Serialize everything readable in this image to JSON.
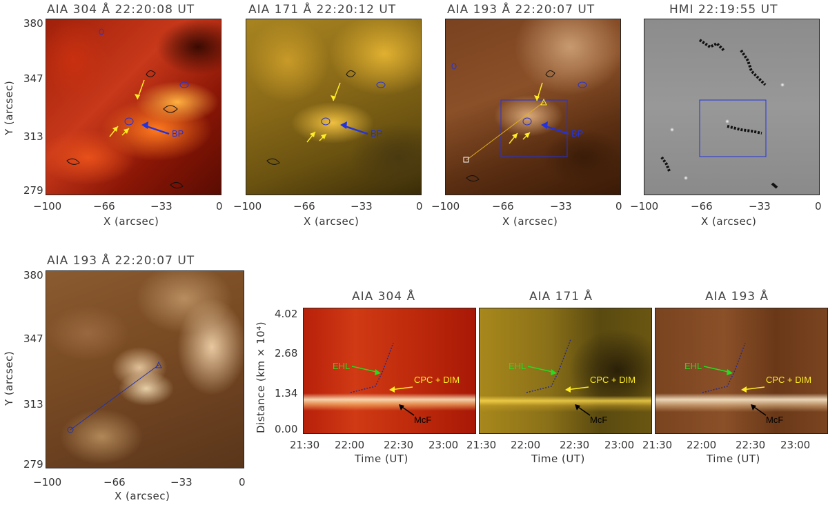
{
  "panels_top": [
    {
      "title": "AIA 304 Å 22:20:08 UT",
      "label": "BP",
      "xlabel": "X (arcsec)",
      "ylabel": "Y (arcsec)",
      "xticks": [
        "−100",
        "−66",
        "−33",
        "0"
      ],
      "yticks": [
        "380",
        "347",
        "313",
        "279"
      ]
    },
    {
      "title": "AIA 171 Å 22:20:12 UT",
      "label": "BP",
      "xlabel": "X (arcsec)",
      "xticks": [
        "−100",
        "−66",
        "−33",
        "0"
      ]
    },
    {
      "title": "AIA 193 Å 22:20:07 UT",
      "label": "BP",
      "xlabel": "X (arcsec)",
      "xticks": [
        "−100",
        "−66",
        "−33",
        "0"
      ]
    },
    {
      "title": "HMI 22:19:55 UT",
      "xlabel": "X (arcsec)",
      "xticks": [
        "−100",
        "−66",
        "−33",
        "0"
      ]
    }
  ],
  "panel_zoom": {
    "title": "AIA 193 Å 22:20:07 UT",
    "xlabel": "X (arcsec)",
    "ylabel": "Y (arcsec)",
    "xticks": [
      "−100",
      "−66",
      "−33",
      "0"
    ],
    "yticks": [
      "380",
      "347",
      "313",
      "279"
    ]
  },
  "timeslices": [
    {
      "title": "AIA 304 Å",
      "xlabel": "Time (UT)",
      "ylabel": "Distance (km × 10⁴)",
      "xticks": [
        "21:30",
        "22:00",
        "22:30",
        "23:00"
      ],
      "yticks": [
        "4.02",
        "2.68",
        "1.34",
        "0.00"
      ],
      "ehl": "EHL",
      "cpc": "CPC + DIM",
      "mcf": "McF"
    },
    {
      "title": "AIA 171 Å",
      "xlabel": "Time (UT)",
      "xticks": [
        "21:30",
        "22:00",
        "22:30",
        "23:00"
      ],
      "ehl": "EHL",
      "cpc": "CPC + DIM",
      "mcf": "McF"
    },
    {
      "title": "AIA 193 Å",
      "xlabel": "Time (UT)",
      "xticks": [
        "21:30",
        "22:00",
        "22:30",
        "23:00"
      ],
      "ehl": "EHL",
      "cpc": "CPC + DIM",
      "mcf": "McF"
    }
  ],
  "colors": {
    "ehl": "#22dd22",
    "cpc": "#ffee22",
    "mcf": "#000000",
    "bp_arrow": "#2233dd",
    "arrows": "#ffee22"
  }
}
